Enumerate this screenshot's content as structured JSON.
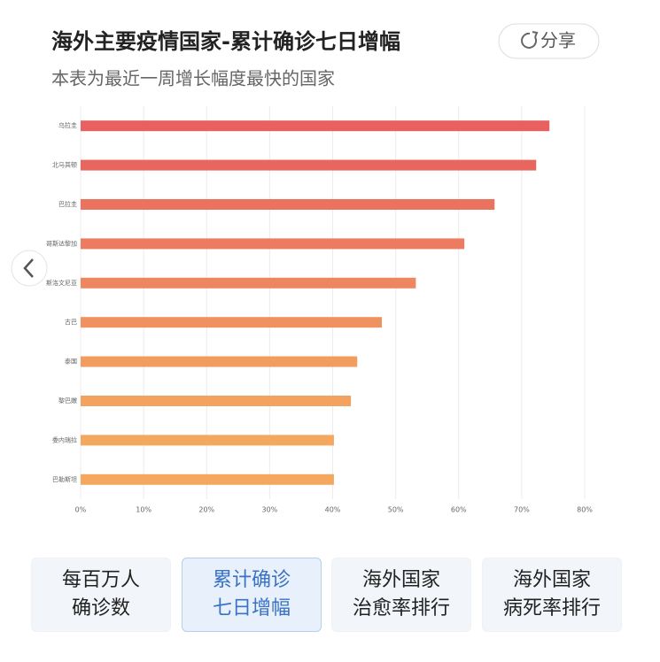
{
  "chart_data": {
    "type": "hbar",
    "title": "海外主要疫情国家-累计确诊七日增幅",
    "subtitle": "本表为最近一周增长幅度最快的国家",
    "categories": [
      "乌拉圭",
      "北马其顿",
      "巴拉圭",
      "哥斯达黎加",
      "斯洛文尼亚",
      "古巴",
      "泰国",
      "黎巴嫩",
      "委内瑞拉",
      "巴勒斯坦"
    ],
    "values": [
      74.4,
      72.3,
      65.7,
      60.9,
      53.2,
      47.8,
      43.9,
      42.9,
      40.2,
      40.2
    ],
    "colors": [
      "#e8605f",
      "#e9665f",
      "#eb725f",
      "#ec7b5f",
      "#ee865f",
      "#f0925f",
      "#f29c5f",
      "#f3a25f",
      "#f4a75f",
      "#f4a85f"
    ],
    "xlim": [
      0,
      80
    ],
    "xticks": [
      {
        "value": 0,
        "label": "0%"
      },
      {
        "value": 10,
        "label": "10%"
      },
      {
        "value": 20,
        "label": "20%"
      },
      {
        "value": 30,
        "label": "30%"
      },
      {
        "value": 40,
        "label": "40%"
      },
      {
        "value": 50,
        "label": "50%"
      },
      {
        "value": 60,
        "label": "60%"
      },
      {
        "value": 70,
        "label": "70%"
      },
      {
        "value": 80,
        "label": "80%"
      }
    ],
    "grid": true
  },
  "share": "分享",
  "tabs": [
    [
      "每百万人",
      "确诊数"
    ],
    [
      "累计确诊",
      "七日增幅"
    ],
    [
      "海外国家",
      "治愈率排行"
    ],
    [
      "海外国家",
      "病死率排行"
    ]
  ],
  "active_tab": 1
}
